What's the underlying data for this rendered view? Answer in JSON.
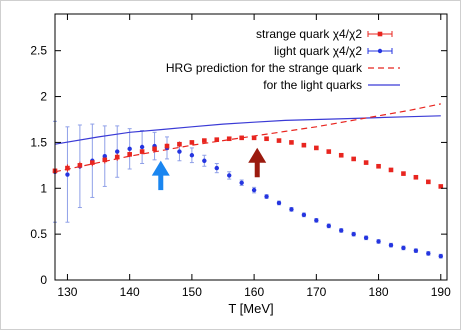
{
  "chart_data": {
    "type": "scatter",
    "xlabel": "T [MeV]",
    "ylabel": "",
    "xlim": [
      128,
      191
    ],
    "ylim": [
      0,
      2.9
    ],
    "xticks": [
      "130",
      "140",
      "150",
      "160",
      "170",
      "180",
      "190"
    ],
    "yticks": [
      "0",
      "0.5",
      "1",
      "1.5",
      "2",
      "2.5"
    ],
    "grid": false,
    "legend_position": "top-right",
    "colors": {
      "strange": "#e8251f",
      "light": "#2535e0",
      "hrg_strange": "#e8251f",
      "hrg_light": "#3b3bd6",
      "blue_arrow": "#1a86f0",
      "red_arrow": "#9b1a0e"
    },
    "series": [
      {
        "name": "strange quark χ4/χ2",
        "style": "points-with-errorbars",
        "x": [
          128,
          130,
          132,
          134,
          136,
          138,
          140,
          142,
          144,
          146,
          148,
          150,
          152,
          154,
          156,
          158,
          160,
          162,
          164,
          166,
          168,
          170,
          172,
          174,
          176,
          178,
          180,
          182,
          184,
          186,
          188,
          190
        ],
        "y": [
          1.19,
          1.22,
          1.25,
          1.28,
          1.31,
          1.34,
          1.37,
          1.4,
          1.43,
          1.46,
          1.48,
          1.5,
          1.52,
          1.53,
          1.54,
          1.55,
          1.55,
          1.54,
          1.52,
          1.5,
          1.47,
          1.44,
          1.4,
          1.36,
          1.32,
          1.28,
          1.24,
          1.2,
          1.16,
          1.12,
          1.07,
          1.02
        ],
        "yerr": [
          0.04,
          0.04,
          0.04,
          0.04,
          0.04,
          0.04,
          0.03,
          0.03,
          0.03,
          0.03,
          0.03,
          0.02,
          0.02,
          0.02,
          0.02,
          0.02,
          0.02,
          0.02,
          0.02,
          0.02,
          0.02,
          0.02,
          0.02,
          0.02,
          0.02,
          0.02,
          0.02,
          0.02,
          0.02,
          0.02,
          0.02,
          0.02
        ]
      },
      {
        "name": "light quark χ4/χ2",
        "style": "points-with-errorbars",
        "x": [
          128,
          130,
          132,
          134,
          136,
          138,
          140,
          142,
          144,
          146,
          148,
          150,
          152,
          154,
          156,
          158,
          160,
          162,
          164,
          166,
          168,
          170,
          172,
          174,
          176,
          178,
          180,
          182,
          184,
          186,
          188,
          190
        ],
        "y": [
          1.18,
          1.15,
          1.24,
          1.3,
          1.35,
          1.4,
          1.43,
          1.45,
          1.46,
          1.44,
          1.4,
          1.36,
          1.3,
          1.22,
          1.14,
          1.06,
          0.98,
          0.91,
          0.84,
          0.77,
          0.71,
          0.65,
          0.59,
          0.54,
          0.5,
          0.46,
          0.42,
          0.38,
          0.35,
          0.32,
          0.29,
          0.26
        ],
        "yerr": [
          0.55,
          0.52,
          0.45,
          0.4,
          0.33,
          0.28,
          0.22,
          0.18,
          0.15,
          0.12,
          0.1,
          0.08,
          0.06,
          0.05,
          0.04,
          0.03,
          0.03,
          0.02,
          0.02,
          0.02,
          0.02,
          0.02,
          0.02,
          0.02,
          0.02,
          0.02,
          0.02,
          0.02,
          0.02,
          0.02,
          0.02,
          0.02
        ]
      },
      {
        "name": "HRG prediction for the strange quark",
        "style": "dashed-line",
        "x": [
          128,
          135,
          140,
          145,
          150,
          155,
          160,
          165,
          170,
          175,
          180,
          185,
          190
        ],
        "y": [
          1.18,
          1.28,
          1.35,
          1.41,
          1.47,
          1.52,
          1.57,
          1.62,
          1.67,
          1.73,
          1.79,
          1.85,
          1.92
        ]
      },
      {
        "name": "for the light quarks",
        "style": "solid-line",
        "x": [
          128,
          135,
          140,
          145,
          150,
          155,
          160,
          165,
          170,
          175,
          180,
          185,
          190
        ],
        "y": [
          1.48,
          1.56,
          1.61,
          1.64,
          1.67,
          1.7,
          1.72,
          1.74,
          1.75,
          1.76,
          1.77,
          1.78,
          1.79
        ]
      }
    ],
    "annotations": [
      {
        "type": "arrow",
        "color_key": "blue_arrow",
        "x": 145,
        "y_tail": 0.98,
        "y_head": 1.28
      },
      {
        "type": "arrow",
        "color_key": "red_arrow",
        "x": 160.5,
        "y_tail": 1.12,
        "y_head": 1.42
      }
    ]
  }
}
